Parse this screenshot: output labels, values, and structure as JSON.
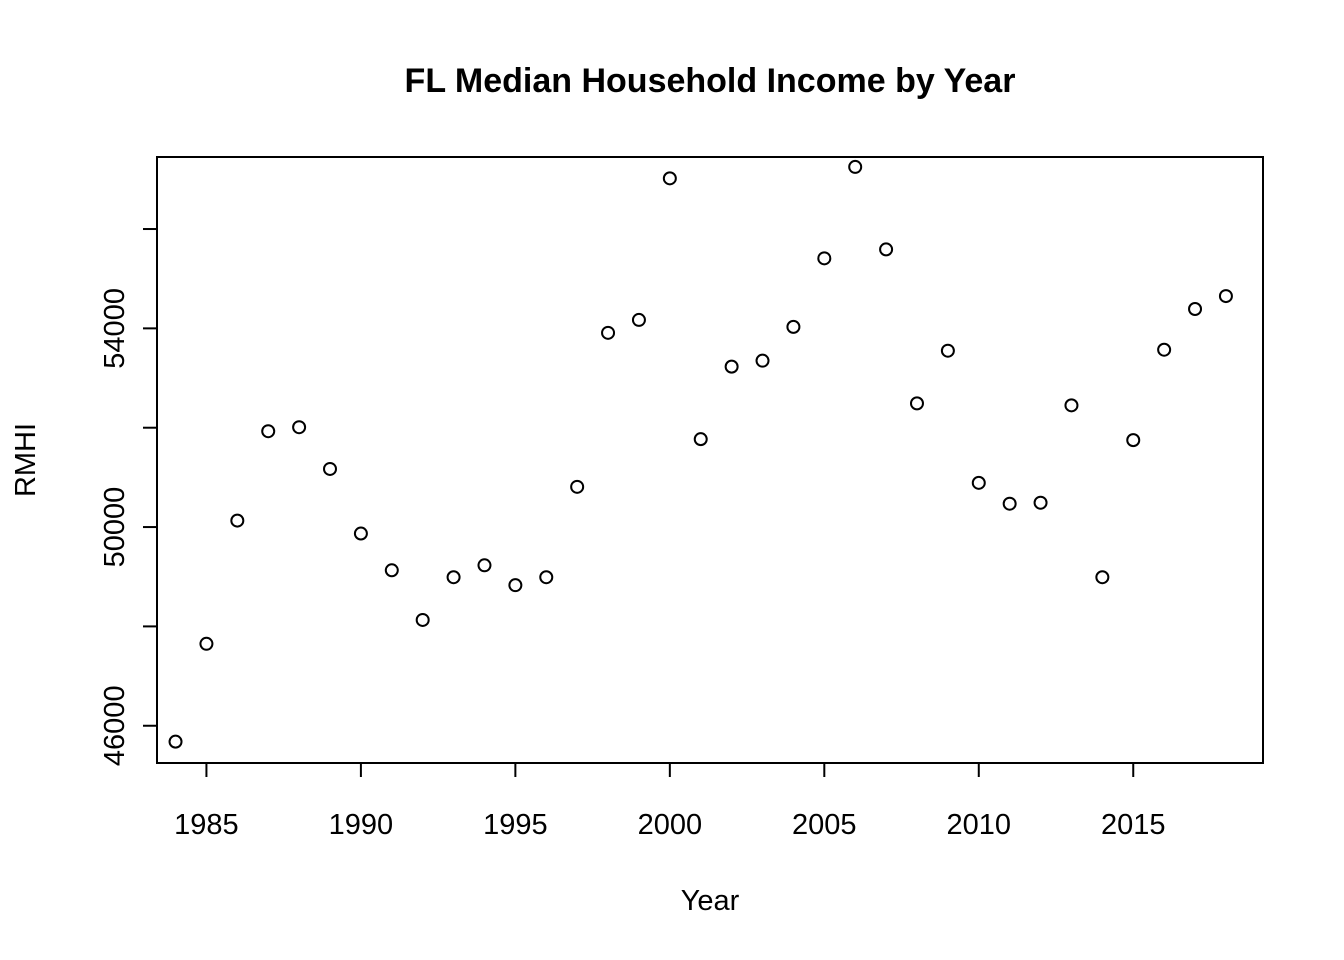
{
  "chart_data": {
    "type": "scatter",
    "title": "FL Median Household Income by Year",
    "xlabel": "Year",
    "ylabel": "RMHI",
    "xlim": [
      1983.4,
      2019.2
    ],
    "ylim": [
      45250,
      57450
    ],
    "x_ticks": [
      1985,
      1990,
      1995,
      2000,
      2005,
      2010,
      2015
    ],
    "x_tick_labels": [
      "1985",
      "1990",
      "1995",
      "2000",
      "2005",
      "2010",
      "2015"
    ],
    "y_ticks": [
      46000,
      48000,
      50000,
      52000,
      54000,
      56000
    ],
    "y_tick_labels": [
      "46000",
      "",
      "50000",
      "",
      "54000",
      ""
    ],
    "grid": false,
    "legend": "none",
    "series": [
      {
        "x": [
          1984,
          1985,
          1986,
          1987,
          1988,
          1989,
          1990,
          1991,
          1992,
          1993,
          1994,
          1995,
          1996,
          1997,
          1998,
          1999,
          2000,
          2001,
          2002,
          2003,
          2004,
          2005,
          2006,
          2007,
          2008,
          2009,
          2010,
          2011,
          2012,
          2013,
          2014,
          2015,
          2016,
          2017,
          2018
        ],
        "y": [
          45680,
          47650,
          50130,
          51930,
          52010,
          51170,
          49870,
          49130,
          48130,
          48990,
          49230,
          48830,
          48990,
          50810,
          53910,
          54170,
          57020,
          51770,
          53230,
          53350,
          54030,
          55410,
          57250,
          55590,
          52490,
          53550,
          50890,
          50470,
          50490,
          52450,
          48990,
          51750,
          53570,
          54390,
          54650
        ]
      }
    ]
  }
}
